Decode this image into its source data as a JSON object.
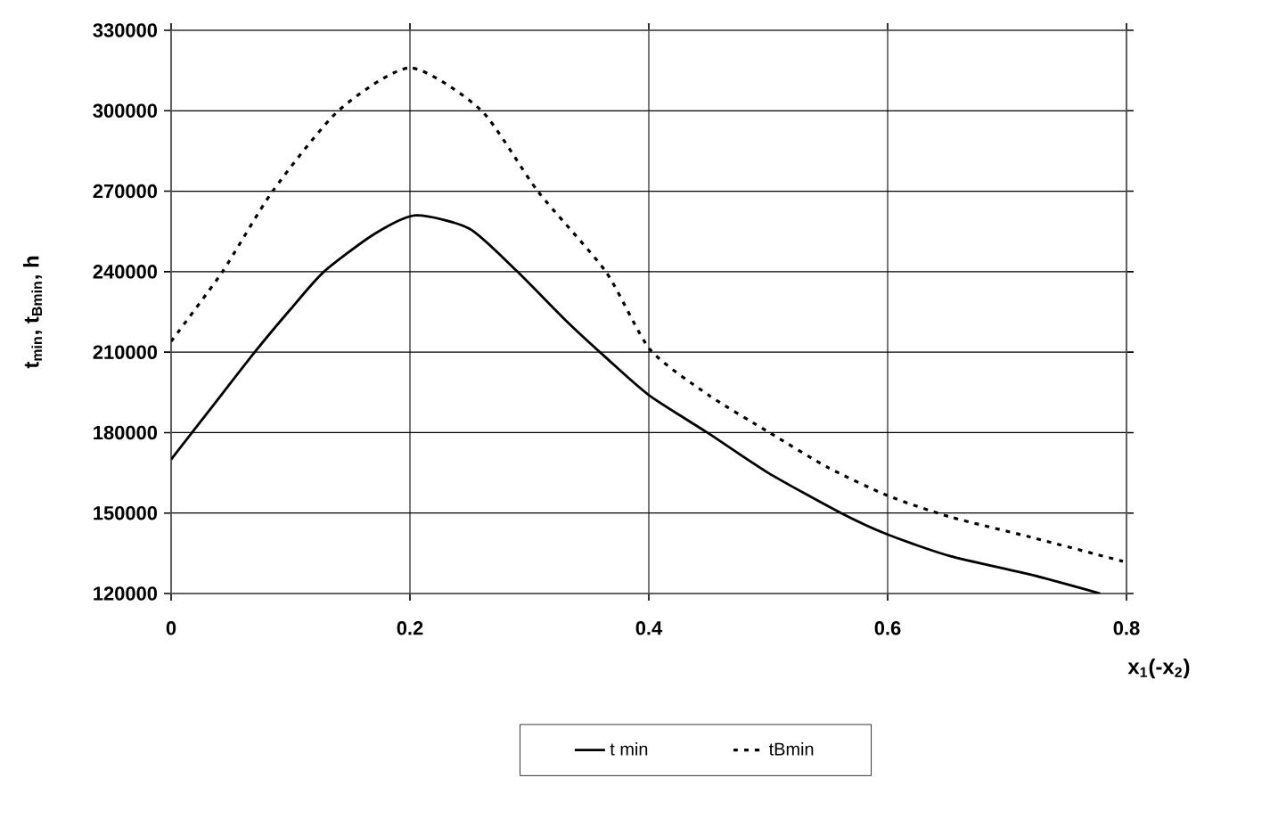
{
  "chart_data": {
    "type": "line",
    "xlabel": "x$_{1}$(-x$_{2}$)",
    "ylabel": "t$_{min}$, t$_{Bmin}$, h",
    "xlim": [
      0,
      0.8
    ],
    "ylim": [
      120000,
      330000
    ],
    "xticks": [
      0,
      0.2,
      0.4,
      0.6,
      0.8
    ],
    "yticks": [
      120000,
      150000,
      180000,
      210000,
      240000,
      270000,
      300000,
      330000
    ],
    "grid": true,
    "legend": "bottom",
    "series": [
      {
        "name": "t min",
        "color": "#000000",
        "line_style": "solid",
        "x": [
          0,
          0.035,
          0.07,
          0.1,
          0.128,
          0.17,
          0.205,
          0.25,
          0.29,
          0.33,
          0.364,
          0.4,
          0.449,
          0.5,
          0.561,
          0.6,
          0.652,
          0.72,
          0.778
        ],
        "values": [
          170000,
          190000,
          210000,
          226000,
          240000,
          254000,
          261000,
          256000,
          240000,
          222000,
          208000,
          194000,
          180000,
          165000,
          150000,
          142000,
          134000,
          127000,
          120000
        ]
      },
      {
        "name": "tBmin",
        "color": "#000000",
        "line_style": "dashed",
        "x": [
          0,
          0.043,
          0.085,
          0.14,
          0.2,
          0.26,
          0.307,
          0.364,
          0.401,
          0.45,
          0.501,
          0.55,
          0.6,
          0.652,
          0.72,
          0.797
        ],
        "values": [
          214000,
          240000,
          270000,
          300000,
          316000,
          300000,
          270000,
          240000,
          211000,
          194000,
          180000,
          167000,
          156500,
          148600,
          141000,
          132000
        ]
      }
    ]
  }
}
